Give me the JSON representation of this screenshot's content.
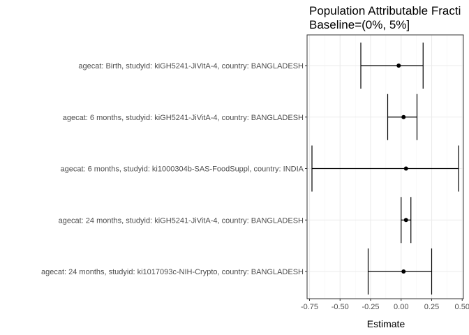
{
  "chart_data": {
    "type": "scatter",
    "title_lines": [
      "Population Attributable Fracti",
      "Baseline=(0%, 5%]"
    ],
    "xlabel": "Estimate",
    "ylabel": "",
    "xlim": [
      -0.77,
      0.51
    ],
    "xticks": [
      "-0.75",
      "-0.50",
      "-0.25",
      "0.00",
      "0.25",
      "0.50"
    ],
    "xtick_values": [
      -0.75,
      -0.5,
      -0.25,
      0,
      0.25,
      0.5
    ],
    "grid": true,
    "legend": "none",
    "colors": {
      "panel_border": "#333333",
      "grid_major": "#ebebeb",
      "grid_minor": "#f5f5f5",
      "mark": "#000000"
    },
    "rows": [
      {
        "label": "agecat: Birth, studyid: kiGH5241-JiVitA-4, country: BANGLADESH",
        "estimate": -0.02,
        "lower": -0.33,
        "upper": 0.18
      },
      {
        "label": "agecat: 6 months, studyid: kiGH5241-JiVitA-4, country: BANGLADESH",
        "estimate": 0.02,
        "lower": -0.11,
        "upper": 0.13
      },
      {
        "label": "agecat: 6 months, studyid: ki1000304b-SAS-FoodSuppl, country: INDIA",
        "estimate": 0.04,
        "lower": -0.73,
        "upper": 0.47
      },
      {
        "label": "agecat: 24 months, studyid: kiGH5241-JiVitA-4, country: BANGLADESH",
        "estimate": 0.04,
        "lower": 0.0,
        "upper": 0.08
      },
      {
        "label": "agecat: 24 months, studyid: ki1017093c-NIH-Crypto, country: BANGLADESH",
        "estimate": 0.02,
        "lower": -0.27,
        "upper": 0.25
      }
    ]
  }
}
